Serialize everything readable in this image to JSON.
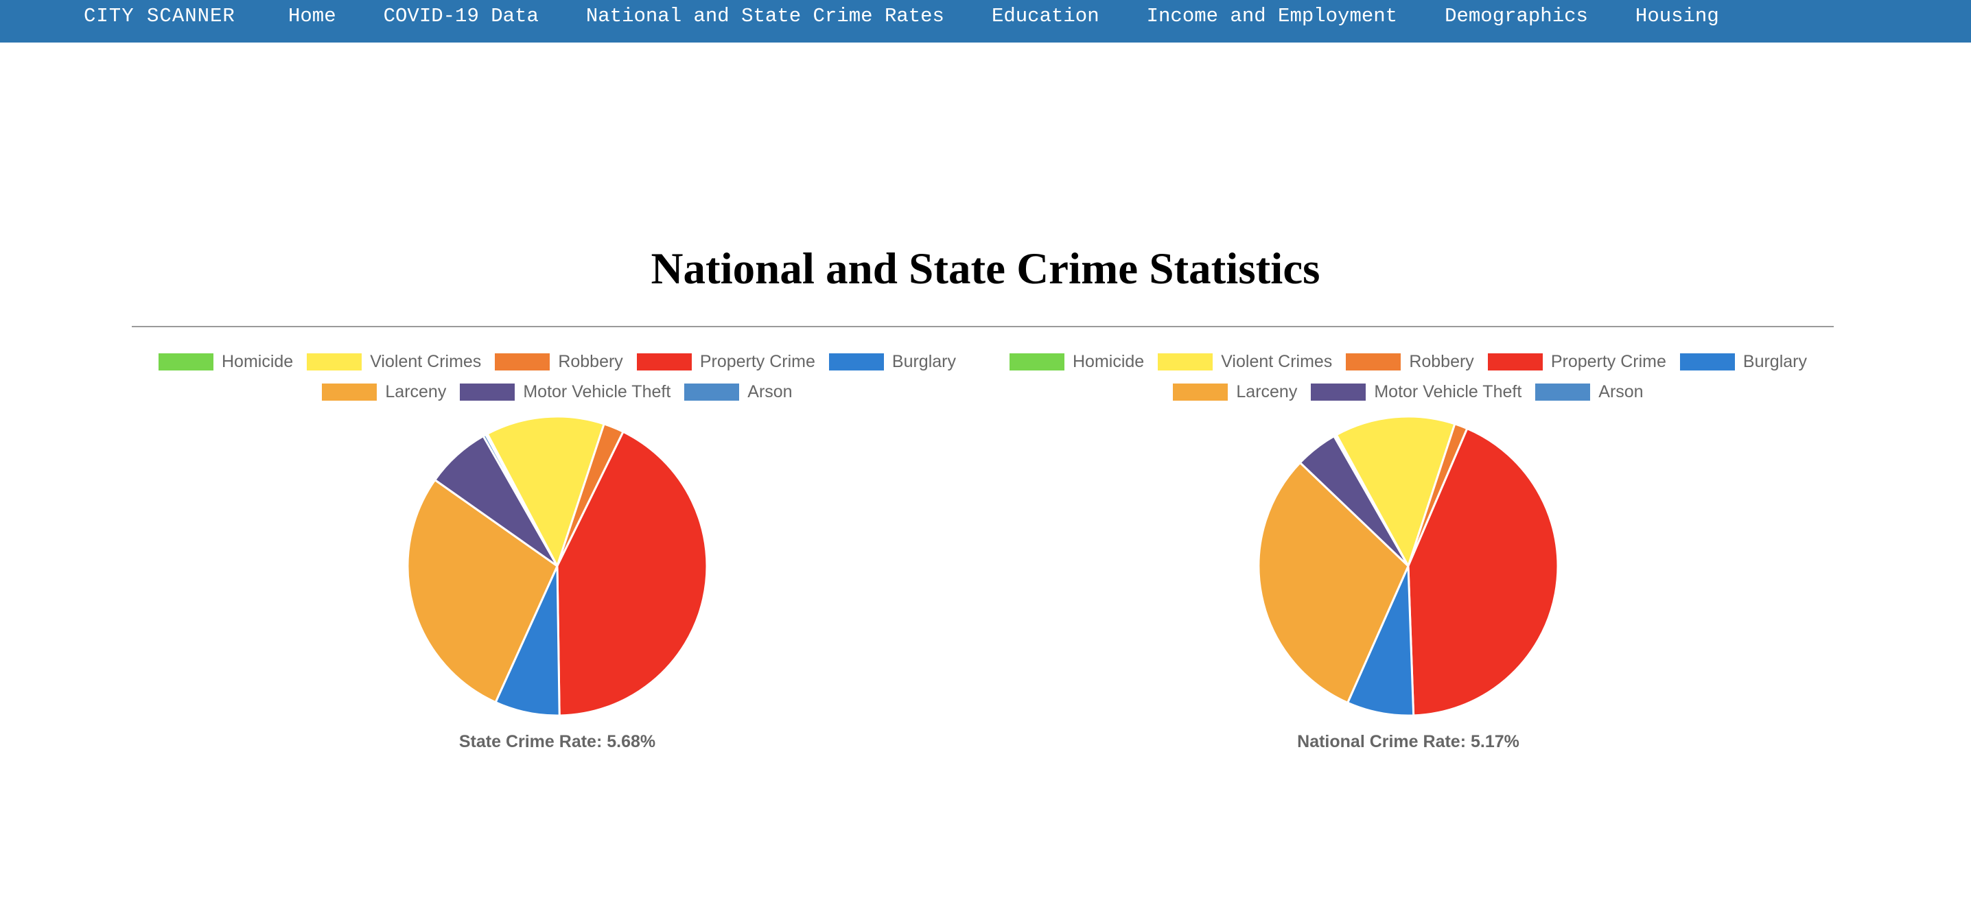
{
  "nav": {
    "brand": "CITY SCANNER",
    "items": [
      "Home",
      "COVID-19 Data",
      "National and State Crime Rates",
      "Education",
      "Income and Employment",
      "Demographics",
      "Housing"
    ],
    "background_color": "#2c75b0"
  },
  "page": {
    "title": "National and State Crime Statistics"
  },
  "legend": {
    "categories": [
      "Homicide",
      "Violent Crimes",
      "Robbery",
      "Property Crime",
      "Burglary",
      "Larceny",
      "Motor Vehicle Theft",
      "Arson"
    ],
    "colors": [
      "#77d54b",
      "#ffea4f",
      "#ef7d32",
      "#ee3124",
      "#2f7fd2",
      "#f4a83b",
      "#5d528e",
      "#4e8bc8"
    ]
  },
  "chart_data": [
    {
      "type": "pie",
      "title": "",
      "caption": "State Crime Rate: 5.68%",
      "categories": [
        "Homicide",
        "Violent Crimes",
        "Robbery",
        "Property Crime",
        "Burglary",
        "Larceny",
        "Motor Vehicle Theft",
        "Arson"
      ],
      "values": [
        0.2,
        12.8,
        2.2,
        42.5,
        7.0,
        28.0,
        7.0,
        0.3
      ],
      "legend_position": "top"
    },
    {
      "type": "pie",
      "title": "",
      "caption": "National Crime Rate: 5.17%",
      "categories": [
        "Homicide",
        "Violent Crimes",
        "Robbery",
        "Property Crime",
        "Burglary",
        "Larceny",
        "Motor Vehicle Theft",
        "Arson"
      ],
      "values": [
        0.1,
        13.0,
        1.4,
        43.0,
        7.2,
        30.5,
        4.6,
        0.2
      ],
      "legend_position": "top"
    }
  ]
}
